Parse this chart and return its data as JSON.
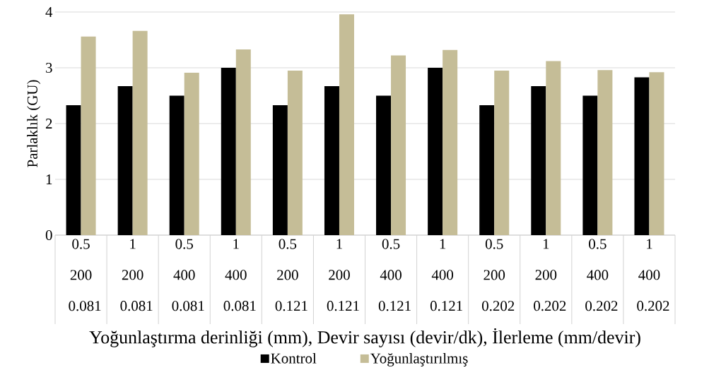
{
  "chart_data": {
    "type": "bar",
    "ylabel": "Parlaklık (GU)",
    "xlabel": "Yoğunlaştırma derinliği (mm), Devir sayısı (devir/dk), İlerleme (mm/devir)",
    "categories": [
      "0.5 200 0.081",
      "1 200 0.081",
      "0.5 400 0.081",
      "1 400 0.081",
      "0.5 200 0.121",
      "1 200 0.121",
      "0.5 400 0.121",
      "1 400 0.121",
      "0.5 200 0.202",
      "1 200 0.202",
      "0.5 400 0.202",
      "1 400 0.202"
    ],
    "series": [
      {
        "name": "Kontrol",
        "color": "#000000",
        "values": [
          2.33,
          2.67,
          2.5,
          3,
          2.33,
          2.67,
          2.5,
          3,
          2.33,
          2.67,
          2.5,
          2.83
        ]
      },
      {
        "name": "Yoğunlaştırılmış",
        "color": "#c5bd97",
        "values": [
          3.56,
          3.66,
          2.91,
          3.33,
          2.95,
          3.96,
          3.22,
          3.32,
          2.95,
          3.12,
          2.96,
          2.92
        ]
      }
    ],
    "ylim": [
      0,
      4
    ],
    "yticks": [
      0,
      1,
      2,
      3,
      4
    ],
    "grid": "y",
    "legend": "bottom"
  }
}
